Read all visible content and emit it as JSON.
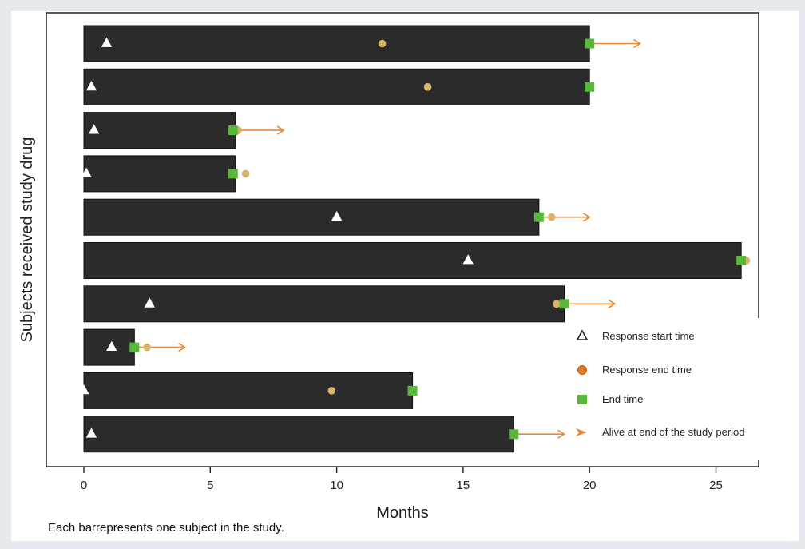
{
  "caption": "Each barrepresents one subject in the study.",
  "chart_data": {
    "type": "swimmer",
    "title": "",
    "xlabel": "Months",
    "ylabel": "Subjects received study drug",
    "xlim": [
      0,
      26.8
    ],
    "xticks": [
      0,
      5,
      10,
      15,
      20,
      25
    ],
    "grid": false,
    "legend_position": "bottom-right",
    "colors": {
      "bar": "#2b2b2b",
      "response_start": "#ffffff",
      "response_end": "#d9b36a",
      "end_time": "#59b73a",
      "alive_arrow": "#e68a3a"
    },
    "legend": [
      {
        "key": "response_start",
        "label": "Response start time",
        "marker": "triangle"
      },
      {
        "key": "response_end",
        "label": "Response end time",
        "marker": "circle"
      },
      {
        "key": "end_time",
        "label": "End time",
        "marker": "square"
      },
      {
        "key": "alive",
        "label": "Alive at end of the study period",
        "marker": "arrow"
      }
    ],
    "subjects": [
      {
        "duration": 20,
        "response_start": 0.9,
        "response_end": 11.8,
        "end_time": 20,
        "alive": true
      },
      {
        "duration": 20,
        "response_start": 0.3,
        "response_end": 13.6,
        "end_time": 20,
        "alive": false
      },
      {
        "duration": 6,
        "response_start": 0.4,
        "response_end": 6.1,
        "end_time": 5.9,
        "alive": true
      },
      {
        "duration": 6,
        "response_start": 0.1,
        "response_end": 6.4,
        "end_time": 5.9,
        "alive": false
      },
      {
        "duration": 18,
        "response_start": 10.0,
        "response_end": 18.5,
        "end_time": 18.0,
        "alive": true
      },
      {
        "duration": 26,
        "response_start": 15.2,
        "response_end": 26.2,
        "end_time": 26.0,
        "alive": false
      },
      {
        "duration": 19,
        "response_start": 2.6,
        "response_end": 18.7,
        "end_time": 19.0,
        "alive": true
      },
      {
        "duration": 2,
        "response_start": 1.1,
        "response_end": 2.5,
        "end_time": 2.0,
        "alive": true
      },
      {
        "duration": 13,
        "response_start": 0.0,
        "response_end": 9.8,
        "end_time": 13.0,
        "alive": false
      },
      {
        "duration": 17,
        "response_start": 0.3,
        "response_end": null,
        "end_time": 17.0,
        "alive": true
      }
    ]
  }
}
